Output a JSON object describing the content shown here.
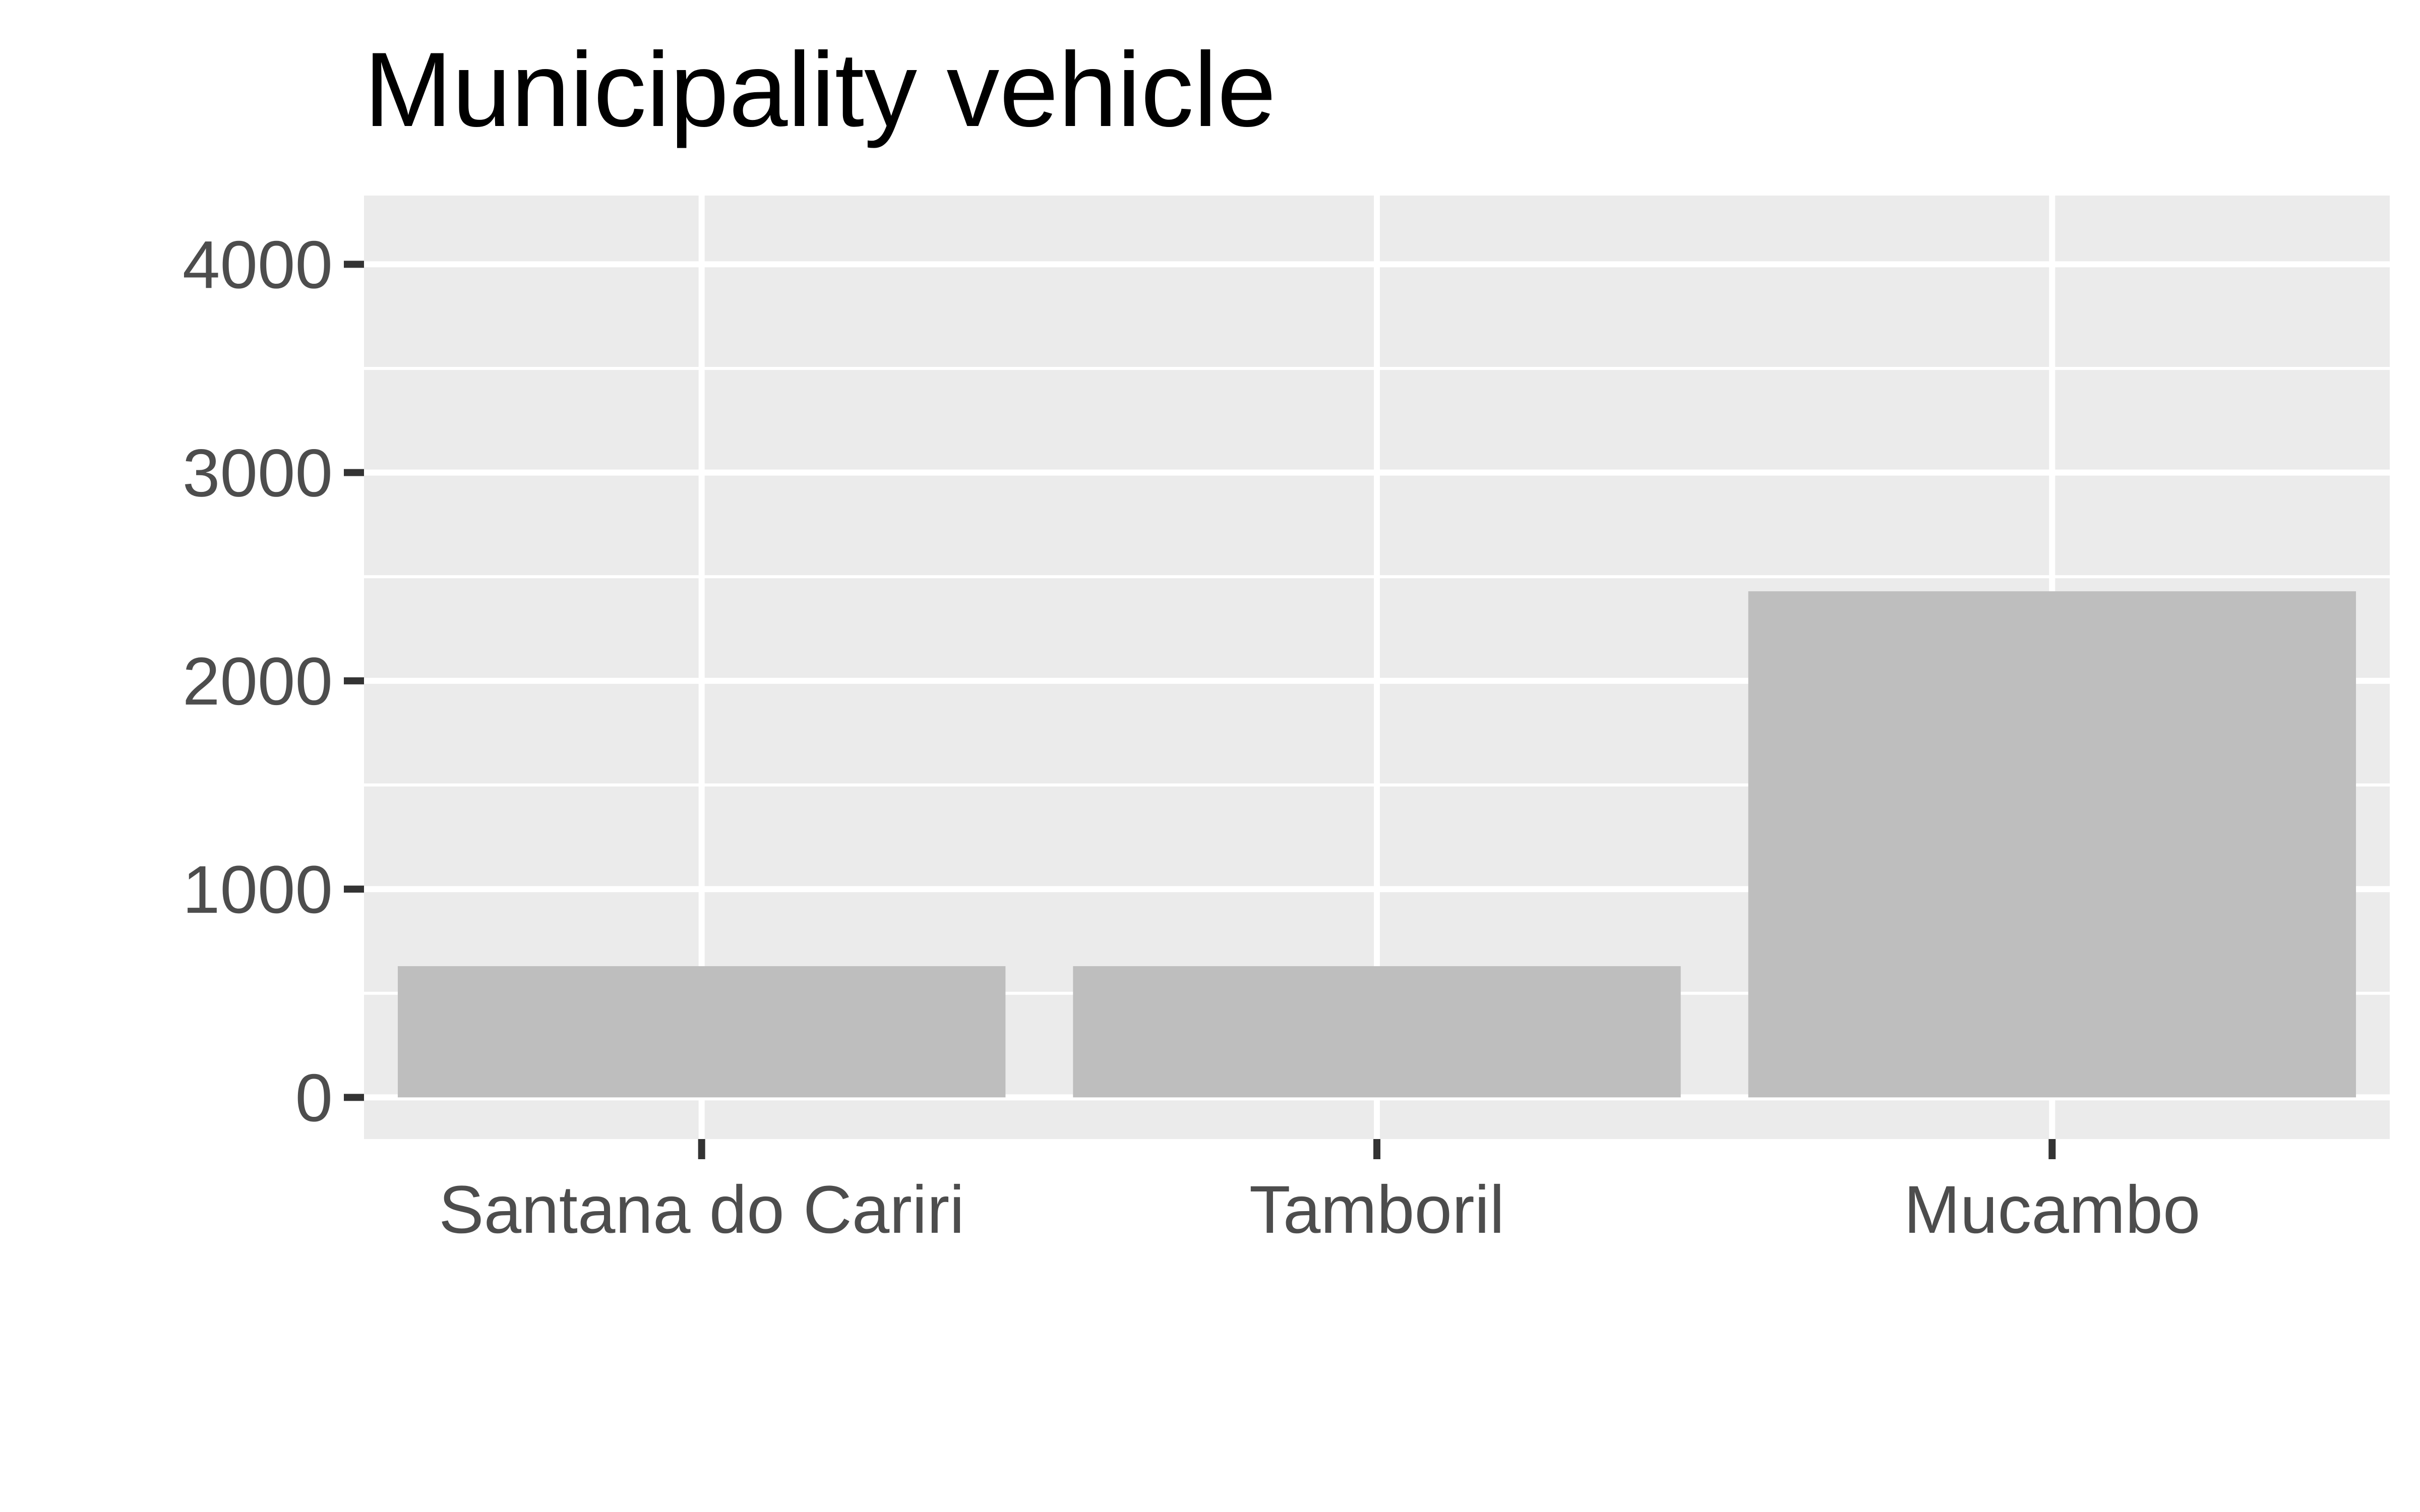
{
  "chart_data": {
    "type": "bar",
    "title": "Municipality vehicle",
    "xlabel": "",
    "ylabel": "",
    "categories": [
      "Santana do Cariri",
      "Tamboril",
      "Mucambo"
    ],
    "values": [
      630,
      630,
      2430
    ],
    "ylim": [
      -200,
      4330
    ],
    "yticks": [
      0,
      1000,
      2000,
      3000,
      4000
    ],
    "grid": true,
    "legend": "none",
    "colors": {
      "panel": "#ebebeb",
      "grid": "#ffffff",
      "bar": "#bebebe",
      "tick": "#333333",
      "tick_label": "#4d4d4d",
      "title": "#000000"
    }
  }
}
